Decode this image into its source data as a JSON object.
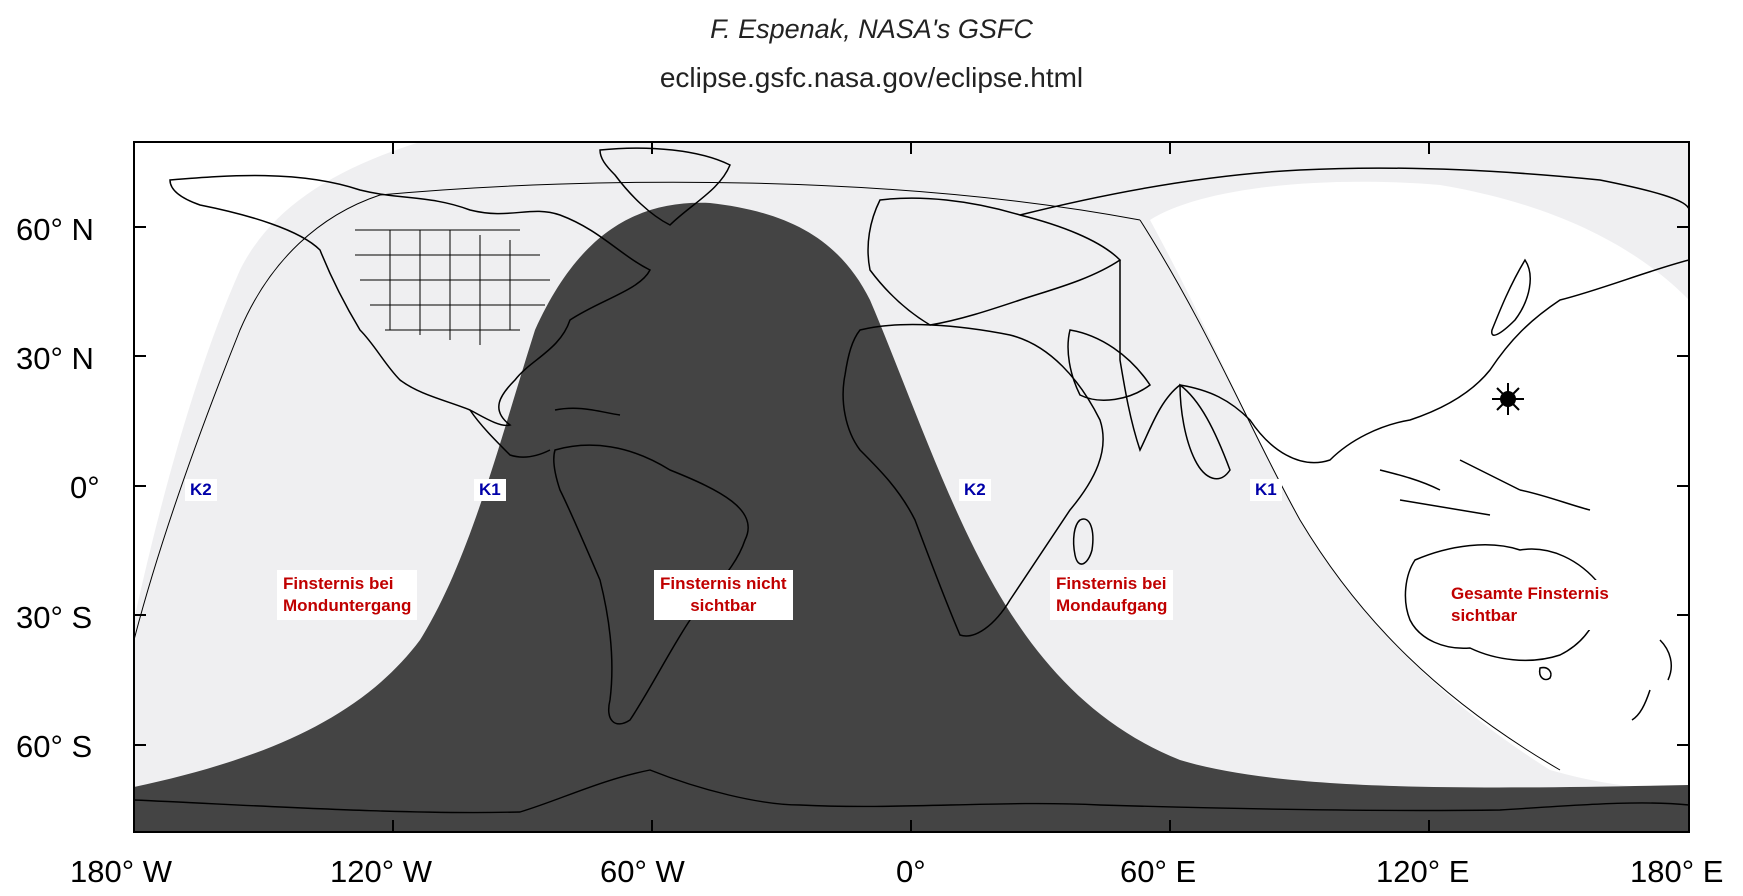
{
  "credits": {
    "author": "F. Espenak, NASA's GSFC",
    "url": "eclipse.gsfc.nasa.gov/eclipse.html"
  },
  "axes": {
    "lat_labels": [
      "60° N",
      "30° N",
      "0°",
      "30° S",
      "60° S"
    ],
    "lon_labels": [
      "180° W",
      "120° W",
      "60° W",
      "0°",
      "60° E",
      "120° E",
      "180° E"
    ]
  },
  "zones": {
    "moonset": "Finsternis bei\nMonduntergang",
    "not_visible": "Finsternis nicht\nsichtbar",
    "moonrise": "Finsternis bei\nMondaufgang",
    "fully_visible": "Gesamte Finsternis\nsichtbar"
  },
  "contacts": {
    "k2_west": "K2",
    "k1_west": "K1",
    "k2_east": "K2",
    "k1_east": "K1"
  },
  "colors": {
    "night": "#444444",
    "partial": "#efeff1",
    "day": "#ffffff",
    "label_red": "#c00000",
    "label_blue": "#0000a8"
  },
  "icons": {
    "moon_position": "moon-position-icon"
  }
}
